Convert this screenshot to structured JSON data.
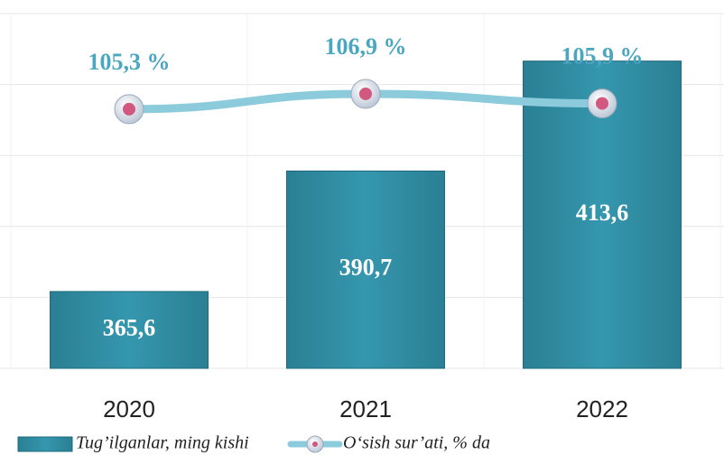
{
  "chart_data": {
    "type": "bar",
    "categories": [
      "2020",
      "2021",
      "2022"
    ],
    "ylim": [
      349.6,
      423.5
    ],
    "y2lim": [
      78.2,
      115.3
    ],
    "grid": true,
    "series": [
      {
        "name": "Tug’ilganlar, ming kishi",
        "type": "bar",
        "color": "#2e8aa0",
        "values": [
          365.6,
          390.7,
          413.6
        ],
        "value_labels": [
          "365,6",
          "390,7",
          "413,6"
        ]
      },
      {
        "name": "O‘sish sur’ati, % da",
        "type": "line",
        "axis": "y2",
        "color": "#8ccbdc",
        "values": [
          105.3,
          106.9,
          105.9
        ],
        "value_labels": [
          "105,3 %",
          "106,9 %",
          "105,9 %"
        ]
      }
    ]
  }
}
